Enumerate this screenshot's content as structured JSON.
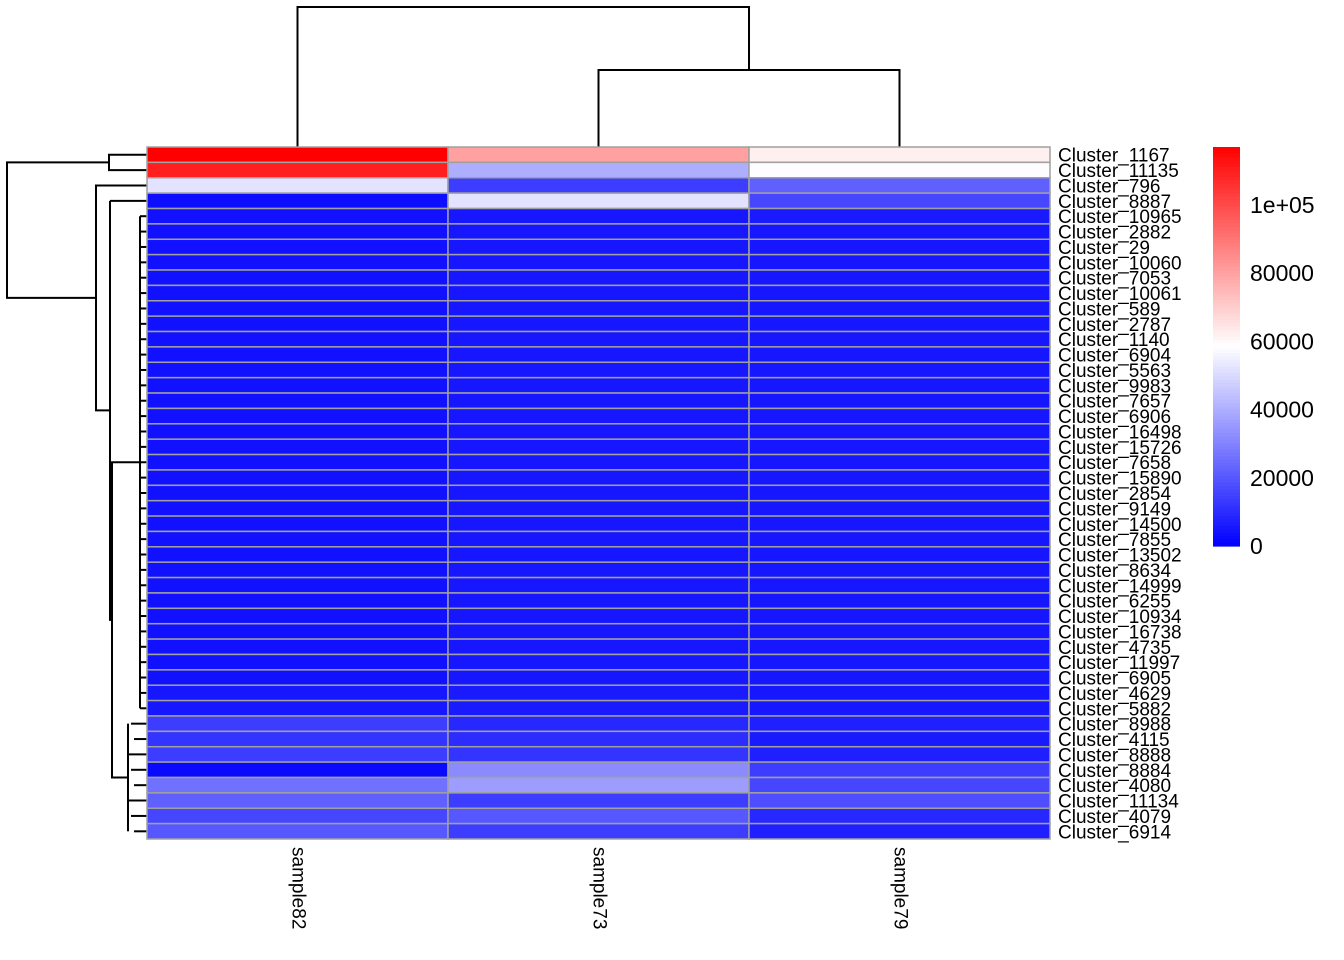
{
  "chart_data": {
    "type": "heatmap",
    "title": "",
    "columns": [
      "sample82",
      "sample73",
      "sample79"
    ],
    "rows": [
      "Cluster_1167",
      "Cluster_11135",
      "Cluster_796",
      "Cluster_8887",
      "Cluster_10965",
      "Cluster_2882",
      "Cluster_29",
      "Cluster_10060",
      "Cluster_7053",
      "Cluster_10061",
      "Cluster_589",
      "Cluster_2787",
      "Cluster_1140",
      "Cluster_6904",
      "Cluster_5563",
      "Cluster_9983",
      "Cluster_7657",
      "Cluster_6906",
      "Cluster_16498",
      "Cluster_15726",
      "Cluster_7658",
      "Cluster_15890",
      "Cluster_2854",
      "Cluster_9149",
      "Cluster_14500",
      "Cluster_7855",
      "Cluster_13502",
      "Cluster_8634",
      "Cluster_14999",
      "Cluster_6255",
      "Cluster_10934",
      "Cluster_16738",
      "Cluster_4735",
      "Cluster_11997",
      "Cluster_6905",
      "Cluster_4629",
      "Cluster_5882",
      "Cluster_8988",
      "Cluster_4115",
      "Cluster_8888",
      "Cluster_8884",
      "Cluster_4080",
      "Cluster_11134",
      "Cluster_4079",
      "Cluster_6914"
    ],
    "values": [
      [
        117000,
        80000,
        62000
      ],
      [
        110000,
        40000,
        58000
      ],
      [
        52000,
        14000,
        22000
      ],
      [
        3000,
        52000,
        16000
      ],
      [
        4000,
        5000,
        6000
      ],
      [
        4000,
        5000,
        5000
      ],
      [
        4000,
        5000,
        5000
      ],
      [
        4000,
        5000,
        5000
      ],
      [
        4000,
        5000,
        5000
      ],
      [
        4000,
        5000,
        5000
      ],
      [
        4000,
        5000,
        5000
      ],
      [
        4000,
        5000,
        5000
      ],
      [
        4000,
        5000,
        5000
      ],
      [
        4000,
        5000,
        5000
      ],
      [
        4000,
        5000,
        5000
      ],
      [
        4000,
        5000,
        5000
      ],
      [
        4000,
        5000,
        5000
      ],
      [
        4000,
        5000,
        5000
      ],
      [
        4000,
        5000,
        5000
      ],
      [
        4000,
        5000,
        5000
      ],
      [
        4000,
        5000,
        5000
      ],
      [
        4000,
        5000,
        5000
      ],
      [
        4000,
        5000,
        5000
      ],
      [
        4000,
        5000,
        5000
      ],
      [
        4000,
        5000,
        5000
      ],
      [
        4000,
        5000,
        5000
      ],
      [
        4000,
        5000,
        5000
      ],
      [
        4000,
        5000,
        5000
      ],
      [
        4000,
        5000,
        5000
      ],
      [
        4000,
        5000,
        5000
      ],
      [
        4000,
        5000,
        5000
      ],
      [
        4000,
        5000,
        5000
      ],
      [
        4000,
        5000,
        5000
      ],
      [
        4000,
        5000,
        5000
      ],
      [
        4000,
        5000,
        5000
      ],
      [
        5000,
        6000,
        5000
      ],
      [
        5000,
        6000,
        5000
      ],
      [
        14000,
        9000,
        7000
      ],
      [
        12000,
        10000,
        6000
      ],
      [
        14000,
        12000,
        7000
      ],
      [
        2000,
        32000,
        14000
      ],
      [
        26000,
        36000,
        16000
      ],
      [
        22000,
        14000,
        18000
      ],
      [
        16000,
        20000,
        9000
      ],
      [
        20000,
        14000,
        7000
      ]
    ],
    "color_scale": {
      "min": 0,
      "max": 117000,
      "low_color": "#0000ff",
      "mid_color": "#ffffff",
      "mid_value": 58500,
      "high_color": "#ff0000",
      "ticks": [
        0,
        20000,
        40000,
        60000,
        80000,
        100000
      ],
      "tick_labels": [
        "0",
        "20000",
        "40000",
        "60000",
        "80000",
        "1e+05"
      ]
    },
    "grid_color": "#a0a0a0",
    "legend_position": "right",
    "row_dendrogram": "left",
    "column_dendrogram": "top"
  }
}
